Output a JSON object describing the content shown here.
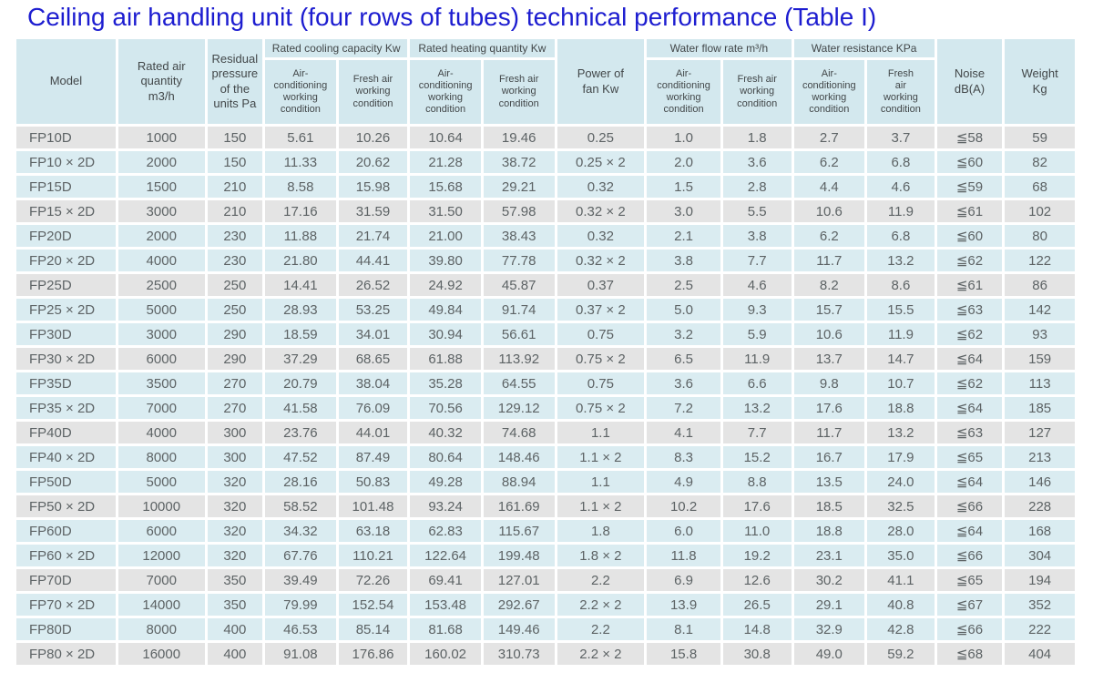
{
  "title": "Ceiling air handling unit (four rows of tubes) technical performance (Table I)",
  "colors": {
    "title_blue": "#1d1dd0",
    "header_bg": "#d3e8ee",
    "row_blue_bg": "#daecf1",
    "row_gray_bg": "#e4e4e4",
    "data_text": "#5d6365",
    "gap_white": "#ffffff"
  },
  "table": {
    "headers": {
      "model": "Model",
      "rated_air_quantity": "Rated air\nquantity\nm3/h",
      "residual_pressure": "Residual\npressure\nof the\nunits Pa",
      "cooling_group": "Rated cooling capacity Kw",
      "heating_group": "Rated heating quantity Kw",
      "power_of_fan": "Power of\nfan Kw",
      "water_flow_group": "Water flow rate m³/h",
      "water_resistance_group": "Water resistance KPa",
      "noise": "Noise\ndB(A)",
      "weight": "Weight\nKg",
      "sub_air_conditioning": "Air-\nconditioning\nworking\ncondition",
      "sub_fresh_air": "Fresh air\nworking\ncondition",
      "sub_fresh_air_tall": "Fresh\nair\nworking\ncondition"
    },
    "column_keys": [
      "model",
      "rated-air-quantity",
      "residual-pressure",
      "cooling-air-conditioning",
      "cooling-fresh-air",
      "heating-air-conditioning",
      "heating-fresh-air",
      "power-of-fan",
      "water-flow-air-conditioning",
      "water-flow-fresh-air",
      "water-resistance-air-conditioning",
      "water-resistance-fresh-air",
      "noise",
      "weight"
    ],
    "rows": [
      [
        "FP10D",
        "1000",
        "150",
        "5.61",
        "10.26",
        "10.64",
        "19.46",
        "0.25",
        "1.0",
        "1.8",
        "2.7",
        "3.7",
        "≦58",
        "59"
      ],
      [
        "FP10 × 2D",
        "2000",
        "150",
        "11.33",
        "20.62",
        "21.28",
        "38.72",
        "0.25 × 2",
        "2.0",
        "3.6",
        "6.2",
        "6.8",
        "≦60",
        "82"
      ],
      [
        "FP15D",
        "1500",
        "210",
        "8.58",
        "15.98",
        "15.68",
        "29.21",
        "0.32",
        "1.5",
        "2.8",
        "4.4",
        "4.6",
        "≦59",
        "68"
      ],
      [
        "FP15 × 2D",
        "3000",
        "210",
        "17.16",
        "31.59",
        "31.50",
        "57.98",
        "0.32 × 2",
        "3.0",
        "5.5",
        "10.6",
        "11.9",
        "≦61",
        "102"
      ],
      [
        "FP20D",
        "2000",
        "230",
        "11.88",
        "21.74",
        "21.00",
        "38.43",
        "0.32",
        "2.1",
        "3.8",
        "6.2",
        "6.8",
        "≦60",
        "80"
      ],
      [
        "FP20 × 2D",
        "4000",
        "230",
        "21.80",
        "44.41",
        "39.80",
        "77.78",
        "0.32 × 2",
        "3.8",
        "7.7",
        "11.7",
        "13.2",
        "≦62",
        "122"
      ],
      [
        "FP25D",
        "2500",
        "250",
        "14.41",
        "26.52",
        "24.92",
        "45.87",
        "0.37",
        "2.5",
        "4.6",
        "8.2",
        "8.6",
        "≦61",
        "86"
      ],
      [
        "FP25 × 2D",
        "5000",
        "250",
        "28.93",
        "53.25",
        "49.84",
        "91.74",
        "0.37 × 2",
        "5.0",
        "9.3",
        "15.7",
        "15.5",
        "≦63",
        "142"
      ],
      [
        "FP30D",
        "3000",
        "290",
        "18.59",
        "34.01",
        "30.94",
        "56.61",
        "0.75",
        "3.2",
        "5.9",
        "10.6",
        "11.9",
        "≦62",
        "93"
      ],
      [
        "FP30 × 2D",
        "6000",
        "290",
        "37.29",
        "68.65",
        "61.88",
        "113.92",
        "0.75 × 2",
        "6.5",
        "11.9",
        "13.7",
        "14.7",
        "≦64",
        "159"
      ],
      [
        "FP35D",
        "3500",
        "270",
        "20.79",
        "38.04",
        "35.28",
        "64.55",
        "0.75",
        "3.6",
        "6.6",
        "9.8",
        "10.7",
        "≦62",
        "113"
      ],
      [
        "FP35 × 2D",
        "7000",
        "270",
        "41.58",
        "76.09",
        "70.56",
        "129.12",
        "0.75 × 2",
        "7.2",
        "13.2",
        "17.6",
        "18.8",
        "≦64",
        "185"
      ],
      [
        "FP40D",
        "4000",
        "300",
        "23.76",
        "44.01",
        "40.32",
        "74.68",
        "1.1",
        "4.1",
        "7.7",
        "11.7",
        "13.2",
        "≦63",
        "127"
      ],
      [
        "FP40 × 2D",
        "8000",
        "300",
        "47.52",
        "87.49",
        "80.64",
        "148.46",
        "1.1 × 2",
        "8.3",
        "15.2",
        "16.7",
        "17.9",
        "≦65",
        "213"
      ],
      [
        "FP50D",
        "5000",
        "320",
        "28.16",
        "50.83",
        "49.28",
        "88.94",
        "1.1",
        "4.9",
        "8.8",
        "13.5",
        "24.0",
        "≦64",
        "146"
      ],
      [
        "FP50 × 2D",
        "10000",
        "320",
        "58.52",
        "101.48",
        "93.24",
        "161.69",
        "1.1 × 2",
        "10.2",
        "17.6",
        "18.5",
        "32.5",
        "≦66",
        "228"
      ],
      [
        "FP60D",
        "6000",
        "320",
        "34.32",
        "63.18",
        "62.83",
        "115.67",
        "1.8",
        "6.0",
        "11.0",
        "18.8",
        "28.0",
        "≦64",
        "168"
      ],
      [
        "FP60 × 2D",
        "12000",
        "320",
        "67.76",
        "110.21",
        "122.64",
        "199.48",
        "1.8 × 2",
        "11.8",
        "19.2",
        "23.1",
        "35.0",
        "≦66",
        "304"
      ],
      [
        "FP70D",
        "7000",
        "350",
        "39.49",
        "72.26",
        "69.41",
        "127.01",
        "2.2",
        "6.9",
        "12.6",
        "30.2",
        "41.1",
        "≦65",
        "194"
      ],
      [
        "FP70 × 2D",
        "14000",
        "350",
        "79.99",
        "152.54",
        "153.48",
        "292.67",
        "2.2 × 2",
        "13.9",
        "26.5",
        "29.1",
        "40.8",
        "≦67",
        "352"
      ],
      [
        "FP80D",
        "8000",
        "400",
        "46.53",
        "85.14",
        "81.68",
        "149.46",
        "2.2",
        "8.1",
        "14.8",
        "32.9",
        "42.8",
        "≦66",
        "222"
      ],
      [
        "FP80 × 2D",
        "16000",
        "400",
        "91.08",
        "176.86",
        "160.02",
        "310.73",
        "2.2 × 2",
        "15.8",
        "30.8",
        "49.0",
        "59.2",
        "≦68",
        "404"
      ]
    ]
  }
}
